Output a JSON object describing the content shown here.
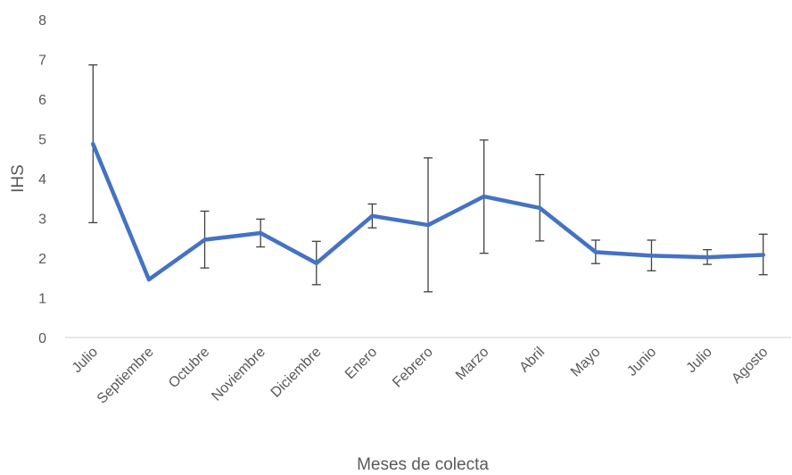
{
  "chart_data": {
    "type": "line",
    "title": "",
    "xlabel": "Meses de colecta",
    "ylabel": "IHS",
    "ylim": [
      0,
      8
    ],
    "yticks": [
      "0",
      "1",
      "2",
      "3",
      "4",
      "5",
      "6",
      "7",
      "8"
    ],
    "grid": false,
    "categories": [
      "Julio",
      "Septiembre",
      "Octubre",
      "Noviembre",
      "Diciembre",
      "Enero",
      "Febrero",
      "Marzo",
      "Abril",
      "Mayo",
      "Junio",
      "Julio",
      "Agosto"
    ],
    "series": [
      {
        "values": [
          4.87,
          1.46,
          2.46,
          2.63,
          1.87,
          3.06,
          2.83,
          3.55,
          3.26,
          2.15,
          2.06,
          2.02,
          2.08
        ],
        "error_low": [
          2.89,
          1.46,
          1.75,
          2.28,
          1.33,
          2.76,
          1.15,
          2.12,
          2.43,
          1.86,
          1.68,
          1.84,
          1.58
        ],
        "error_high": [
          6.86,
          1.46,
          3.18,
          2.98,
          2.42,
          3.36,
          4.52,
          4.97,
          4.1,
          2.45,
          2.45,
          2.21,
          2.6
        ]
      }
    ],
    "colors": {
      "line": "#4472C4",
      "error_bar": "#404040",
      "axis": "#D9D9D9"
    }
  }
}
